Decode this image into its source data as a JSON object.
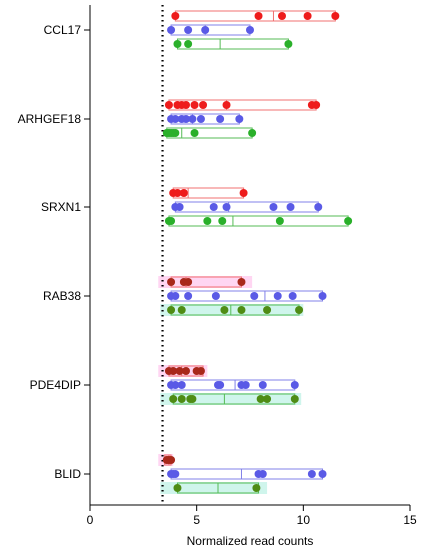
{
  "chart_data": {
    "type": "scatter",
    "xlabel": "Normalized read counts",
    "xlim": [
      0,
      15
    ],
    "x_ticks": [
      0,
      5,
      10,
      15
    ],
    "x_tick_labels": [
      "0",
      "5",
      "10",
      "15"
    ],
    "threshold": 3.4,
    "series_colors": [
      "#ee1c1c",
      "#5a5ae6",
      "#2ab02a"
    ],
    "box_colors": [
      "#f07070",
      "#8080e8",
      "#55bb55"
    ],
    "genes": [
      {
        "name": "CCL17",
        "groups": [
          {
            "points": [
              4.0,
              7.9,
              9.0,
              10.2,
              11.5
            ],
            "box": [
              4.0,
              11.5
            ],
            "median": 8.6,
            "band": null,
            "band_color": null,
            "point_color": "#ee1c1c"
          },
          {
            "points": [
              3.8,
              4.6,
              5.4,
              7.5
            ],
            "box": [
              3.8,
              7.5
            ],
            "median": 5.4,
            "band": null,
            "band_color": null,
            "point_color": "#5a5ae6"
          },
          {
            "points": [
              4.1,
              4.6,
              9.3
            ],
            "box": [
              4.1,
              9.3
            ],
            "median": 6.1,
            "band": null,
            "band_color": null,
            "point_color": "#2ab02a"
          }
        ]
      },
      {
        "name": "ARHGEF18",
        "groups": [
          {
            "points": [
              3.7,
              4.1,
              4.3,
              4.5,
              4.9,
              5.3,
              6.4,
              10.4,
              10.6
            ],
            "box": [
              3.7,
              10.6
            ],
            "median": 6.4,
            "band": null,
            "band_color": null,
            "point_color": "#ee1c1c"
          },
          {
            "points": [
              3.8,
              4.0,
              4.3,
              4.5,
              4.8,
              5.2,
              6.1,
              7.0
            ],
            "box": [
              3.8,
              7.0
            ],
            "median": 4.8,
            "band": null,
            "band_color": null,
            "point_color": "#5a5ae6"
          },
          {
            "points": [
              3.6,
              3.7,
              3.8,
              3.9,
              4.0,
              4.9,
              7.6
            ],
            "box": [
              3.6,
              7.6
            ],
            "median": 4.3,
            "band": null,
            "band_color": null,
            "point_color": "#2ab02a"
          }
        ]
      },
      {
        "name": "SRXN1",
        "groups": [
          {
            "points": [
              3.9,
              4.1,
              4.4,
              7.2
            ],
            "box": [
              3.9,
              7.2
            ],
            "median": 4.6,
            "band": null,
            "band_color": null,
            "point_color": "#ee1c1c"
          },
          {
            "points": [
              4.0,
              4.2,
              5.8,
              6.4,
              8.6,
              9.4,
              10.7
            ],
            "box": [
              4.0,
              10.7
            ],
            "median": 6.5,
            "band": null,
            "band_color": null,
            "point_color": "#5a5ae6"
          },
          {
            "points": [
              3.7,
              3.8,
              5.5,
              6.2,
              8.9,
              12.1
            ],
            "box": [
              3.7,
              12.1
            ],
            "median": 6.7,
            "band": null,
            "band_color": null,
            "point_color": "#2ab02a"
          }
        ]
      },
      {
        "name": "RAB38",
        "groups": [
          {
            "points": [
              3.8,
              4.4,
              4.6,
              7.1
            ],
            "box": [
              3.8,
              7.1
            ],
            "median": 4.5,
            "band": [
              3.2,
              7.6
            ],
            "band_color": "#ffd6f2",
            "point_color": "#a8281a"
          },
          {
            "points": [
              3.8,
              4.0,
              4.6,
              5.9,
              7.7,
              8.8,
              9.5,
              10.9
            ],
            "box": [
              3.8,
              10.9
            ],
            "median": 8.2,
            "band": null,
            "band_color": null,
            "point_color": "#5a5ae6"
          },
          {
            "points": [
              3.8,
              4.3,
              6.3,
              7.1,
              8.3,
              9.8
            ],
            "box": [
              3.8,
              9.8
            ],
            "median": 6.6,
            "band": [
              3.3,
              10.0
            ],
            "band_color": "#cff5ec",
            "point_color": "#4f8c14"
          }
        ]
      },
      {
        "name": "PDE4DIP",
        "groups": [
          {
            "points": [
              3.7,
              3.9,
              4.2,
              4.5,
              5.0,
              5.2
            ],
            "box": [
              3.7,
              5.3
            ],
            "median": 4.3,
            "band": [
              3.2,
              5.5
            ],
            "band_color": "#ffd6f2",
            "point_color": "#a8281a"
          },
          {
            "points": [
              3.8,
              4.0,
              4.3,
              6.0,
              6.1,
              7.1,
              7.3,
              8.1,
              9.6
            ],
            "box": [
              3.8,
              9.6
            ],
            "median": 6.8,
            "band": null,
            "band_color": null,
            "point_color": "#5a5ae6"
          },
          {
            "points": [
              3.9,
              4.3,
              4.7,
              4.8,
              8.0,
              8.3,
              9.6
            ],
            "box": [
              3.9,
              9.6
            ],
            "median": 6.3,
            "band": [
              3.3,
              9.9
            ],
            "band_color": "#cff5ec",
            "point_color": "#4f8c14"
          }
        ]
      },
      {
        "name": "BLID",
        "groups": [
          {
            "points": [
              3.6,
              3.7,
              3.8
            ],
            "box": [
              3.5,
              3.8
            ],
            "median": 3.7,
            "band": [
              3.2,
              3.9
            ],
            "band_color": "#ffd6f2",
            "point_color": "#a8281a"
          },
          {
            "points": [
              3.8,
              3.9,
              4.0,
              7.9,
              8.1,
              10.4,
              10.9
            ],
            "box": [
              3.8,
              10.9
            ],
            "median": 7.1,
            "band": null,
            "band_color": null,
            "point_color": "#5a5ae6"
          },
          {
            "points": [
              4.1,
              7.8
            ],
            "box": [
              4.1,
              7.9
            ],
            "median": 6.0,
            "band": [
              3.3,
              8.3
            ],
            "band_color": "#cff5ec",
            "point_color": "#4f8c14"
          }
        ]
      }
    ]
  }
}
